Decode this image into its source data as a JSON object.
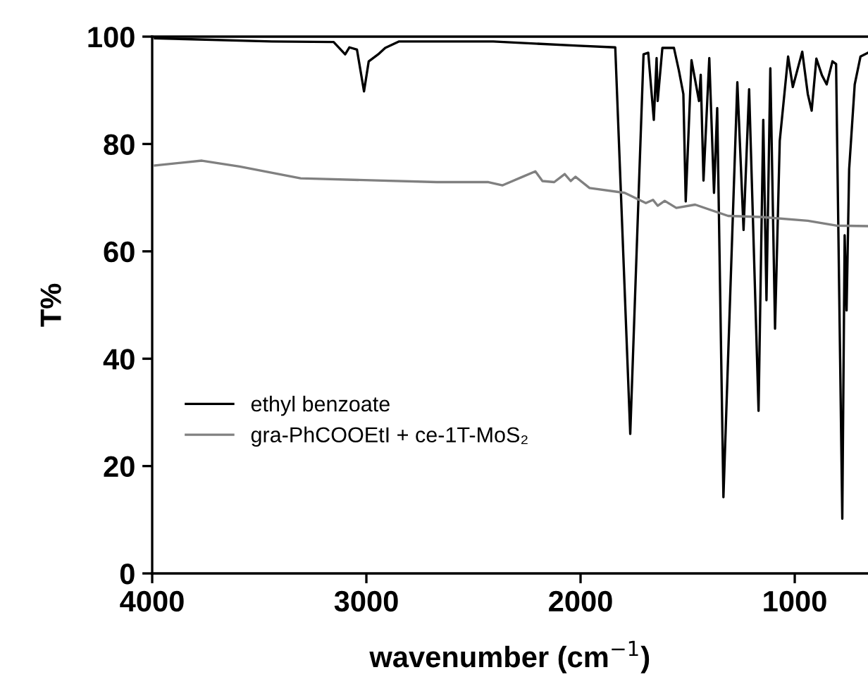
{
  "chart_data": {
    "type": "line",
    "xlabel": "wavenumber (cm$^{−1}$)",
    "ylabel": "T%",
    "xlim": [
      4000,
      658
    ],
    "xticks": [
      4000,
      3000,
      2000,
      1000
    ],
    "ylim": [
      0,
      100
    ],
    "yticks": [
      0,
      20,
      40,
      60,
      80,
      100
    ],
    "grid": false,
    "legend": "bottom left",
    "marker": "none",
    "line_style": "solid",
    "series": [
      {
        "name": "ethyl benzoate",
        "color": "#000000",
        "x": [
          3987,
          3441,
          3153,
          3099,
          3079,
          3044,
          3011,
          2989,
          2945,
          2912,
          2847,
          2408,
          2013,
          1838,
          1768,
          1706,
          1684,
          1658,
          1645,
          1640,
          1618,
          1564,
          1541,
          1520,
          1509,
          1482,
          1447,
          1439,
          1426,
          1399,
          1377,
          1362,
          1333,
          1268,
          1239,
          1213,
          1169,
          1147,
          1132,
          1114,
          1092,
          1070,
          1031,
          1009,
          965,
          939,
          921,
          899,
          873,
          851,
          824,
          807,
          778,
          767,
          758,
          746,
          720,
          693,
          658
        ],
        "values": [
          99.7,
          99.1,
          99,
          96.7,
          98,
          97.6,
          89.8,
          95.4,
          96.7,
          97.9,
          99.1,
          99.1,
          98.3,
          98,
          26,
          96.7,
          97,
          84.5,
          96,
          88,
          97.9,
          97.9,
          93.7,
          89.3,
          69.3,
          95.6,
          88,
          92.9,
          73.2,
          96,
          70.9,
          86.7,
          14.2,
          91.5,
          64,
          90.2,
          30.3,
          84.5,
          50.9,
          94.1,
          45.6,
          80.6,
          96.3,
          90.6,
          97.2,
          89.3,
          86.2,
          95.9,
          92.8,
          91.1,
          95.4,
          94.9,
          10.2,
          63,
          49,
          75.3,
          91.1,
          96.3,
          97
        ]
      },
      {
        "name": "gra-PhCOOEtI + ce-1T-MoS₂",
        "color": "#808080",
        "x": [
          3987,
          3768,
          3592,
          3307,
          2671,
          2430,
          2364,
          2276,
          2211,
          2178,
          2123,
          2074,
          2046,
          2024,
          1958,
          1794,
          1695,
          1662,
          1640,
          1607,
          1553,
          1465,
          1311,
          1158,
          939,
          807,
          658
        ],
        "values": [
          76,
          76.9,
          75.8,
          73.6,
          72.9,
          72.9,
          72.3,
          73.8,
          74.9,
          73.1,
          72.9,
          74.4,
          73.1,
          73.9,
          71.8,
          70.9,
          69,
          69.6,
          68.5,
          69.4,
          68.1,
          68.7,
          66.6,
          66.4,
          65.7,
          64.8,
          64.7
        ]
      }
    ]
  }
}
